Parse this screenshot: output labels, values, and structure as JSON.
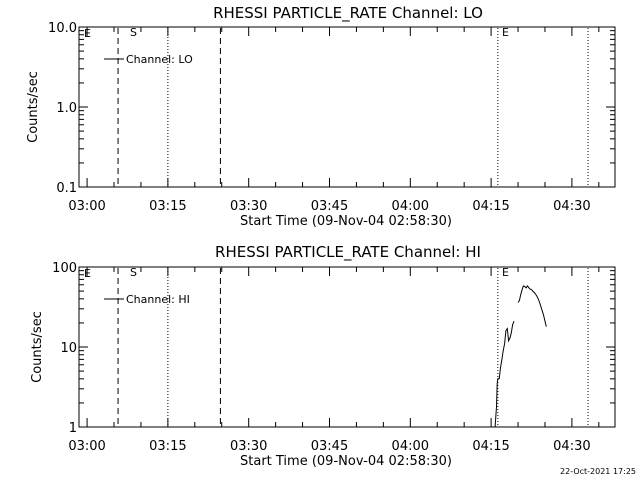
{
  "chart_data": [
    {
      "type": "line",
      "title": "RHESSI PARTICLE_RATE Channel: LO",
      "xlabel": "Start Time (09-Nov-04 02:58:30)",
      "ylabel": "Counts/sec",
      "yscale": "log",
      "ylim": [
        0.1,
        10.0
      ],
      "yticks": [
        0.1,
        1.0,
        10.0
      ],
      "ytick_labels": [
        "0.1",
        "1.0",
        "10.0"
      ],
      "xlim": [
        "02:58:30",
        "04:38:00"
      ],
      "xticks": [
        "03:00",
        "03:15",
        "03:30",
        "03:45",
        "04:00",
        "04:15",
        "04:30"
      ],
      "grid": false,
      "legend": "top-left",
      "series": [
        {
          "name": "Channel: LO",
          "x": [],
          "y": []
        }
      ],
      "markers": [
        {
          "time": "03:05:45",
          "style": "dashed",
          "label": "S"
        },
        {
          "time": "03:15:00",
          "style": "dotted",
          "label": ""
        },
        {
          "time": "03:24:45",
          "style": "dashed",
          "label": ""
        },
        {
          "time": "04:16:15",
          "style": "dotted",
          "label": "E"
        },
        {
          "time": "04:33:00",
          "style": "dotted",
          "label": ""
        }
      ],
      "corner_label": "E"
    },
    {
      "type": "line",
      "title": "RHESSI PARTICLE_RATE Channel: HI",
      "xlabel": "Start Time (09-Nov-04 02:58:30)",
      "ylabel": "Counts/sec",
      "yscale": "log",
      "ylim": [
        1,
        100
      ],
      "yticks": [
        1,
        10,
        100
      ],
      "ytick_labels": [
        "1",
        "10",
        "100"
      ],
      "xlim": [
        "02:58:30",
        "04:38:00"
      ],
      "xticks": [
        "03:00",
        "03:15",
        "03:30",
        "03:45",
        "04:00",
        "04:15",
        "04:30"
      ],
      "grid": false,
      "legend": "top-left",
      "series": [
        {
          "name": "Channel: HI",
          "x": [
            "04:15:45",
            "04:16:00",
            "04:16:08",
            "04:16:15",
            "04:16:30",
            "04:16:45",
            "04:17:00",
            "04:17:15",
            "04:17:30",
            "04:17:45",
            "04:18:00",
            "04:18:15",
            "04:18:30",
            "04:18:45",
            "04:19:00",
            "04:19:15"
          ],
          "y": [
            1.0,
            1.8,
            3.5,
            4.0,
            4.0,
            5.5,
            7.0,
            9.0,
            11.0,
            16.0,
            17.0,
            12.0,
            13.0,
            15.0,
            19.0,
            21.0
          ]
        },
        {
          "name": "",
          "x": [
            "04:20:00",
            "04:20:15",
            "04:20:30",
            "04:20:45",
            "04:21:00",
            "04:21:15",
            "04:21:30",
            "04:21:45",
            "04:22:00",
            "04:22:15",
            "04:22:30",
            "04:22:45",
            "04:23:00",
            "04:23:15",
            "04:23:30",
            "04:23:45",
            "04:24:00",
            "04:24:15",
            "04:24:30",
            "04:24:45",
            "04:25:00",
            "04:25:15"
          ],
          "y": [
            36.0,
            38.0,
            45.0,
            52.0,
            58.0,
            57.0,
            55.0,
            58.0,
            55.0,
            53.0,
            52.0,
            50.0,
            48.0,
            46.0,
            43.0,
            40.0,
            36.0,
            32.0,
            28.0,
            25.0,
            21.0,
            18.0
          ]
        }
      ],
      "markers": [
        {
          "time": "03:05:45",
          "style": "dashed",
          "label": "S"
        },
        {
          "time": "03:15:00",
          "style": "dotted",
          "label": ""
        },
        {
          "time": "03:24:45",
          "style": "dashed",
          "label": ""
        },
        {
          "time": "04:16:15",
          "style": "dotted",
          "label": "E"
        },
        {
          "time": "04:33:00",
          "style": "dotted",
          "label": ""
        }
      ],
      "corner_label": "E"
    }
  ],
  "timestamp": "22-Oct-2021 17:25",
  "colors": {
    "background": "#ffffff",
    "ink": "#000000"
  }
}
